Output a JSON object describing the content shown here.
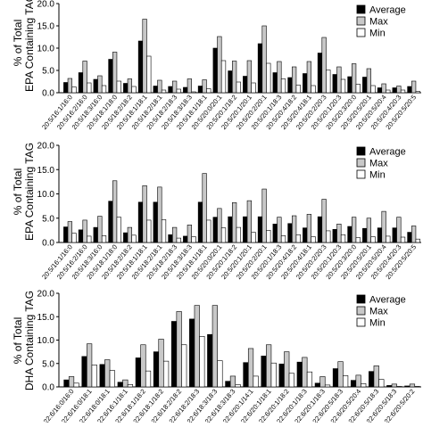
{
  "chart_data": [
    {
      "type": "bar",
      "ylabel": "% of Total EPA Containing TAG",
      "yticks": [
        "0.0",
        "5.0",
        "10.0",
        "15.0",
        "20.0"
      ],
      "ylim": [
        0,
        20
      ],
      "grid": false,
      "legend_position": "top-right",
      "categories": [
        "20:5/16:1/16:0",
        "20:5/16:2/16:0",
        "20:5/18:3/16:0",
        "20:5/18:1/18:0",
        "20:5/18:2/18:2",
        "20:5/18:1/18:1",
        "20:5/18:2/18:1",
        "20:5/18:2/18:3",
        "20:5/18:3/18:3",
        "20:5/18:1/18:1",
        "20:5/20:0/20:1",
        "20:5/20:1/18:2",
        "20:5/20:1/20:1",
        "20:5/20:2/20:1",
        "20:5/20:1/18:3",
        "20:5/20:4/18:2",
        "20:5/20:4/18:1",
        "20:5/20:2/20:3",
        "20:5/20:1/20:3",
        "20:5/20:3/20:0",
        "20:5/20:5/20:1",
        "20:5/20:5/20:4",
        "20:5/20:4/20:3",
        "20:5/20:5/20:5"
      ],
      "series": [
        {
          "name": "Average",
          "values": [
            2.3,
            4.5,
            3.0,
            7.5,
            2.1,
            11.6,
            1.5,
            1.4,
            1.2,
            1.5,
            10.0,
            4.9,
            3.7,
            11.0,
            4.5,
            3.4,
            4.3,
            8.9,
            4.1,
            3.6,
            3.5,
            1.1,
            1.1,
            1.4
          ]
        },
        {
          "name": "Max",
          "values": [
            3.2,
            7.1,
            3.8,
            9.1,
            3.1,
            16.5,
            2.8,
            2.6,
            3.1,
            2.9,
            12.6,
            7.1,
            7.2,
            15.0,
            7.0,
            5.8,
            7.0,
            12.4,
            5.8,
            6.5,
            5.4,
            2.0,
            1.5,
            2.6
          ]
        },
        {
          "name": "Min",
          "values": [
            1.3,
            2.2,
            1.6,
            2.6,
            1.4,
            8.2,
            0.6,
            0.8,
            0.2,
            0.9,
            7.2,
            2.4,
            2.2,
            6.6,
            3.1,
            1.7,
            1.6,
            5.1,
            3.0,
            1.9,
            1.6,
            0.6,
            0.6,
            0.3
          ]
        }
      ]
    },
    {
      "type": "bar",
      "ylabel": "% of Total EPA Containing TAG",
      "yticks": [
        "0.0",
        "5.0",
        "10.0",
        "15.0",
        "20.0"
      ],
      "ylim": [
        0,
        20
      ],
      "grid": false,
      "legend_position": "top-right",
      "categories": [
        "20:5/16:1/16:0",
        "20:5/16:2/16:0",
        "20:5/18:3/16:0",
        "20:5/18:1/18:0",
        "20:5/18:2/18:2",
        "20:5/18:1/18:1",
        "20:5/18:2/18:1",
        "20:5/18:2/18:3",
        "20:5/18:3/18:3",
        "20:5/18:1/18:1",
        "20:5/20:0/20:1",
        "20:5/20:1/18:2",
        "20:5/20:1/20:1",
        "20:5/20:2/20:1",
        "20:5/20:1/18:3",
        "20:5/20:4/18:2",
        "20:5/20:4/18:1",
        "20:5/20:2/20:3",
        "20:5/20:1/20:3",
        "20:5/20:3/20:0",
        "20:5/20:5/20:1",
        "20:5/20:5/20:4",
        "20:5/20:4/20:3",
        "20:5/20:5/20:5"
      ],
      "series": [
        {
          "name": "Average",
          "values": [
            3.2,
            2.6,
            3.1,
            8.5,
            2.0,
            8.3,
            8.3,
            1.6,
            1.3,
            8.3,
            5.2,
            5.3,
            5.3,
            5.3,
            3.8,
            3.9,
            3.0,
            5.3,
            2.7,
            3.3,
            2.9,
            3.0,
            3.0,
            2.1
          ]
        },
        {
          "name": "Max",
          "values": [
            4.3,
            4.6,
            5.4,
            12.7,
            3.1,
            11.7,
            11.4,
            3.1,
            3.6,
            14.2,
            7.0,
            8.2,
            8.6,
            11.0,
            5.2,
            5.5,
            5.8,
            8.9,
            3.8,
            5.2,
            5.0,
            6.4,
            5.2,
            3.4
          ]
        },
        {
          "name": "Min",
          "values": [
            1.9,
            1.3,
            1.4,
            5.2,
            1.5,
            4.6,
            4.7,
            0.9,
            1.2,
            4.6,
            3.0,
            3.1,
            2.1,
            2.5,
            1.4,
            1.6,
            1.2,
            2.4,
            1.6,
            1.0,
            1.2,
            1.3,
            1.1,
            0.7
          ]
        }
      ]
    },
    {
      "type": "bar",
      "ylabel": "% of Total DHA Containing TAG",
      "yticks": [
        "0.0",
        "5.0",
        "10.0",
        "15.0",
        "20.0"
      ],
      "ylim": [
        0,
        20
      ],
      "grid": false,
      "legend_position": "top-right",
      "categories": [
        "22:6/16:0/16:0",
        "22:6/16:0/18:1",
        "22:6/18:0/18:1",
        "22:6/16:1/18:1",
        "22:6/18:1/18:2",
        "22:6/18:1/18:2",
        "22:6/18:2/18:2",
        "22:6/18:2/18:3",
        "22:6/18:3/18:3",
        "22:6/18:3/18:3",
        "22:6/20:1/14:1",
        "22:6/20:1/18:1",
        "22:6/20:1/18:2",
        "22:6/20:1/18:3",
        "22:6/20:1/18:3",
        "22:6/20:5/18:3",
        "22:6/20:5/20:4",
        "22:6/20:5/18:3",
        "22:6/20:5/18:3",
        "22:6/20:5/20:2"
      ],
      "series": [
        {
          "name": "Average",
          "values": [
            1.5,
            6.5,
            4.8,
            1.0,
            6.2,
            7.5,
            14.0,
            14.5,
            11.2,
            1.2,
            5.2,
            6.6,
            4.9,
            5.3,
            0.8,
            3.9,
            1.4,
            3.3,
            0.3,
            0.2
          ]
        },
        {
          "name": "Max",
          "values": [
            2.2,
            9.2,
            5.8,
            1.5,
            9.0,
            10.2,
            16.1,
            17.4,
            17.4,
            2.3,
            8.2,
            9.0,
            7.5,
            6.3,
            2.2,
            5.4,
            2.5,
            4.5,
            0.6,
            0.6
          ]
        },
        {
          "name": "Min",
          "values": [
            0.8,
            4.7,
            3.5,
            0.5,
            3.4,
            5.5,
            9.0,
            10.8,
            5.6,
            0.5,
            2.3,
            5.1,
            2.9,
            3.2,
            0.4,
            2.4,
            0.7,
            1.6,
            0.1,
            0.1
          ]
        }
      ]
    }
  ],
  "colors": {
    "Average": "#000000",
    "Max": "#c8c8c8",
    "Min": "#ffffff",
    "axis": "#000000",
    "edge": "#000000"
  }
}
